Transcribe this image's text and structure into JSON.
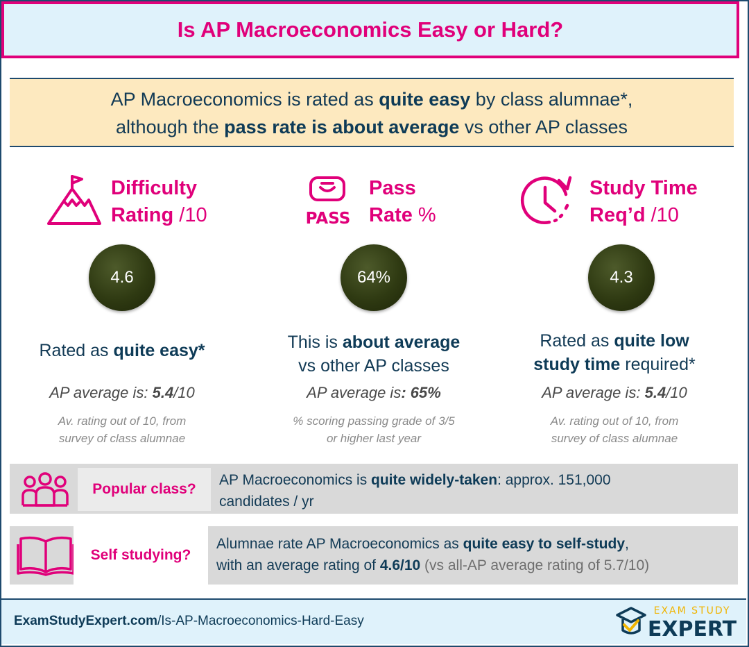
{
  "title": "Is AP Macroeconomics Easy or Hard?",
  "summary": {
    "line1_pre": "AP Macroeconomics is rated as ",
    "line1_bold": "quite easy",
    "line1_post": " by class alumnae*,",
    "line2_pre": "although the ",
    "line2_bold": "pass rate is about average",
    "line2_post": " vs other AP classes"
  },
  "columns": [
    {
      "icon": "mountain-flag-icon",
      "title_line1": "Difficulty",
      "title_line2_bold": "Rating",
      "title_line2_light": " /10",
      "value": "4.6",
      "rated_pre": "Rated as ",
      "rated_bold": "quite easy*",
      "rated_post": "",
      "avg_label": "AP average is: ",
      "avg_value": "5.4",
      "avg_suffix": "/10",
      "note_line1": "Av. rating out of 10, from",
      "note_line2": "survey of class alumnae"
    },
    {
      "icon": "pass-icon",
      "icon_text": "PASS",
      "title_line1": "Pass",
      "title_line2_bold": "Rate",
      "title_line2_light": " %",
      "value": "64%",
      "rated_pre": "This is ",
      "rated_bold": "about average",
      "rated_post": "vs other AP classes",
      "avg_label": "AP average is",
      "avg_value": ": 65%",
      "avg_suffix": "",
      "note_line1": "% scoring passing grade of 3/5",
      "note_line2": "or higher last year"
    },
    {
      "icon": "clock-icon",
      "title_line1": "Study Time",
      "title_line2_bold": "Req’d",
      "title_line2_light": " /10",
      "value": "4.3",
      "rated_pre": "Rated as ",
      "rated_bold": "quite low",
      "rated_bold2": "study time",
      "rated_post": " required*",
      "avg_label": "AP average is: ",
      "avg_value": "5.4",
      "avg_suffix": "/10",
      "note_line1": "Av. rating out of 10, from",
      "note_line2": "survey of class alumnae"
    }
  ],
  "popular": {
    "icon": "people-icon",
    "label": "Popular class?",
    "text_pre": "AP Macroeconomics is ",
    "text_bold": "quite widely-taken",
    "text_post": ": approx. 151,000",
    "text_line2": "candidates / yr"
  },
  "self_study": {
    "icon": "open-book-icon",
    "label": "Self studying?",
    "text_pre": "Alumnae rate AP Macroeconomics as ",
    "text_bold": "quite easy to self-study",
    "text_post": ",",
    "line2_pre": "with an average rating of ",
    "line2_bold": "4.6/10",
    "line2_grey": " (vs all-AP average rating of 5.7/10)"
  },
  "footer": {
    "url_bold": "ExamStudyExpert.com",
    "url_rest": "/Is-AP-Macroeconomics-Hard-Easy",
    "logo_top": "EXAM STUDY",
    "logo_bottom": "EXPERT"
  },
  "colors": {
    "accent": "#e0007a",
    "navy": "#0e3b57",
    "circle": "#2f3a12",
    "summary_bg": "#fde9bf",
    "title_bg": "#dff2fb"
  }
}
